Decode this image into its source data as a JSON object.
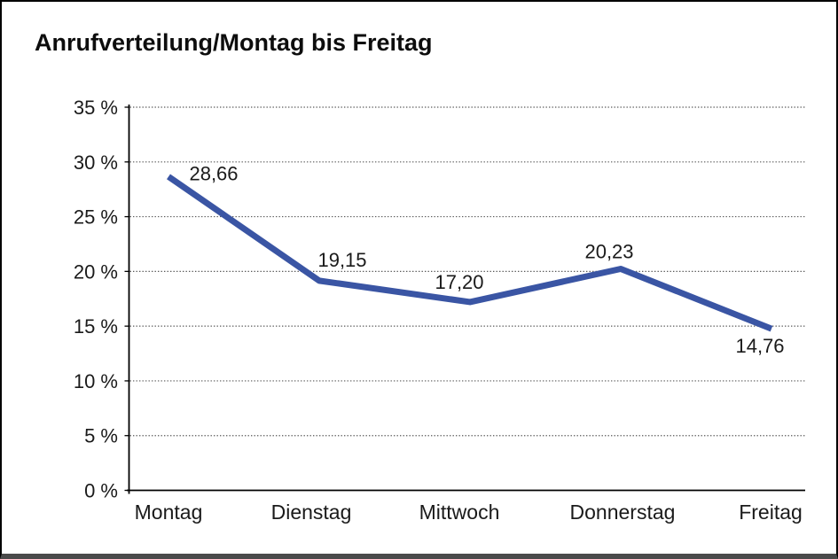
{
  "page": {
    "title": "Anrufverteilung/Montag bis Freitag"
  },
  "colors": {
    "background": "#FFFFFF",
    "frame_border": "#000000",
    "frame_bottom_border": "#4A4A4A",
    "line": "#3A55A4",
    "axis": "#000000",
    "grid": "#595959",
    "text": "#1A1A1A",
    "title_text": "#0D0D0D"
  },
  "chart_data": {
    "type": "line",
    "title": "Anrufverteilung/Montag bis Freitag",
    "categories": [
      "Montag",
      "Dienstag",
      "Mittwoch",
      "Donnerstag",
      "Freitag"
    ],
    "series": [
      {
        "name": "Anrufverteilung",
        "values": [
          28.66,
          19.15,
          17.2,
          20.23,
          14.76
        ]
      }
    ],
    "point_labels": [
      "28,66",
      "19,15",
      "17,20",
      "20,23",
      "14,76"
    ],
    "unit": "%",
    "decimal_separator": ",",
    "xlabel": "",
    "ylabel": "",
    "ylim": [
      0,
      35
    ],
    "ytick_step": 5,
    "yticks": [
      0,
      5,
      10,
      15,
      20,
      25,
      30,
      35
    ],
    "ytick_labels": [
      "0 %",
      "5 %",
      "10 %",
      "15 %",
      "20 %",
      "25 %",
      "30 %",
      "35 %"
    ],
    "grid": "horizontal-dotted",
    "legend": "none",
    "markers": "none"
  }
}
